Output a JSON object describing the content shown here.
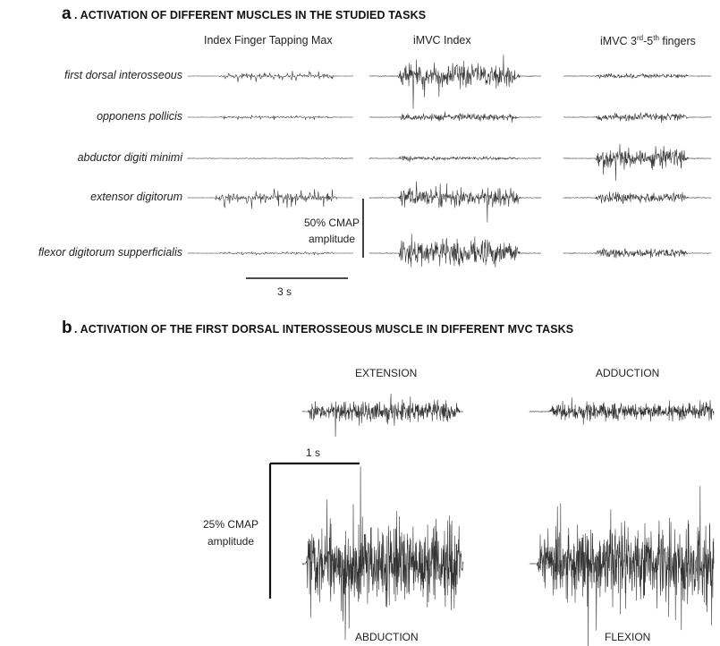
{
  "panel_a": {
    "letter": "a",
    "title": ". ACTIVATION OF DIFFERENT MUSCLES IN THE STUDIED TASKS",
    "columns": [
      "Index Finger Tapping Max",
      "iMVC Index"
    ],
    "column3": {
      "prefix": "iMVC 3",
      "sup1": "rd",
      "mid": "-5",
      "sup2": "th",
      "suffix": " fingers"
    },
    "rows": [
      "first dorsal interosseous",
      "opponens pollicis",
      "abductor digiti minimi",
      "extensor digitorum",
      "flexor digitorum supperficialis"
    ],
    "scale_amplitude_line1": "50% CMAP",
    "scale_amplitude_line2": "amplitude",
    "scale_time": "3 s"
  },
  "panel_b": {
    "letter": "b",
    "title": ". ACTIVATION OF THE FIRST DORSAL INTEROSSEOUS MUSCLE IN DIFFERENT MVC TASKS",
    "traces": [
      "EXTENSION",
      "ADDUCTION",
      "ABDUCTION",
      "FLEXION"
    ],
    "scale_time": "1 s",
    "scale_amplitude_line1": "25% CMAP",
    "scale_amplitude_line2": "amplitude"
  }
}
